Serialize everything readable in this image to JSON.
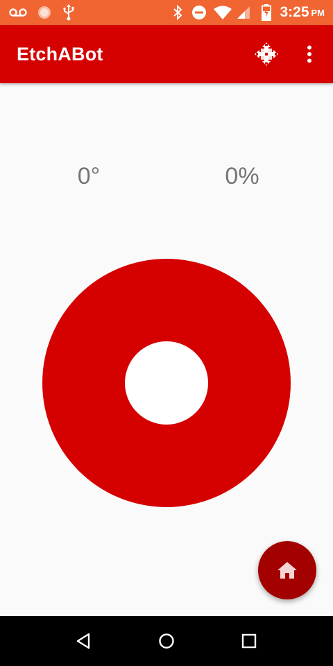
{
  "status_bar": {
    "background": "#f06532",
    "time": "3:25",
    "ampm": "PM",
    "left_icons": [
      "voicemail-icon",
      "notification-dot-icon",
      "usb-icon"
    ],
    "right_icons": [
      "bluetooth-icon",
      "do-not-disturb-icon",
      "wifi-icon",
      "cell-signal-icon",
      "battery-charging-icon"
    ]
  },
  "app_bar": {
    "title": "EtchABot",
    "background": "#d50000",
    "actions": [
      {
        "name": "move-icon"
      },
      {
        "name": "overflow-menu-icon"
      }
    ]
  },
  "readouts": {
    "angle": "0°",
    "power": "0%"
  },
  "joystick": {
    "ring_color": "#d50000",
    "knob_color": "#ffffff"
  },
  "fab": {
    "icon": "home-icon",
    "color": "#a30000"
  },
  "nav_bar": {
    "buttons": [
      "back-icon",
      "home-circle-icon",
      "recents-icon"
    ]
  }
}
